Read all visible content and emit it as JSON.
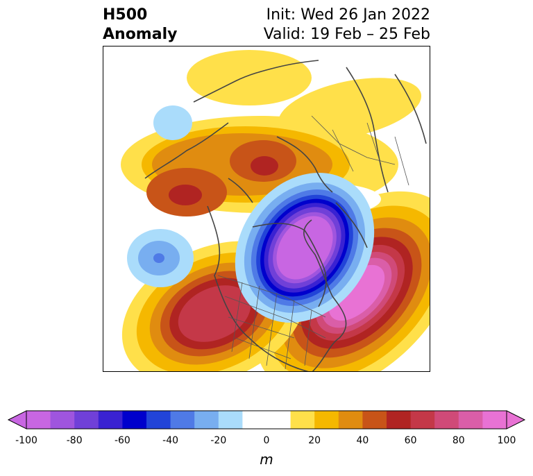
{
  "title": {
    "left_line1": "H500",
    "left_line2": "Anomaly",
    "right_line1": "Init: Wed 26 Jan 2022",
    "right_line2": "Valid: 19 Feb – 25 Feb"
  },
  "colorbar": {
    "unit": "m",
    "ticks": [
      "-100",
      "-80",
      "-60",
      "-40",
      "-20",
      "0",
      "20",
      "40",
      "60",
      "80",
      "100"
    ],
    "colors": [
      "#c866e2",
      "#9f55de",
      "#7040d8",
      "#3a22d2",
      "#0000cc",
      "#2244d8",
      "#4f7ae6",
      "#78aef0",
      "#aadcfb",
      "#ffffff",
      "#ffffff",
      "#ffe04a",
      "#f5b800",
      "#e08c10",
      "#c85418",
      "#b02422",
      "#c43848",
      "#d04a78",
      "#da5ea8",
      "#e872d4"
    ]
  },
  "map": {
    "region": "Northern Hemisphere polar projection",
    "anomaly_centers": [
      {
        "name": "eastern-north-america-trough",
        "value": -100
      },
      {
        "name": "north-atlantic-ridge",
        "value": 100
      },
      {
        "name": "western-us-ridge",
        "value": 80
      },
      {
        "name": "siberia-ridge",
        "value": 60
      },
      {
        "name": "arctic-ridge",
        "value": 60
      },
      {
        "name": "north-pacific-trough",
        "value": -40
      }
    ]
  }
}
